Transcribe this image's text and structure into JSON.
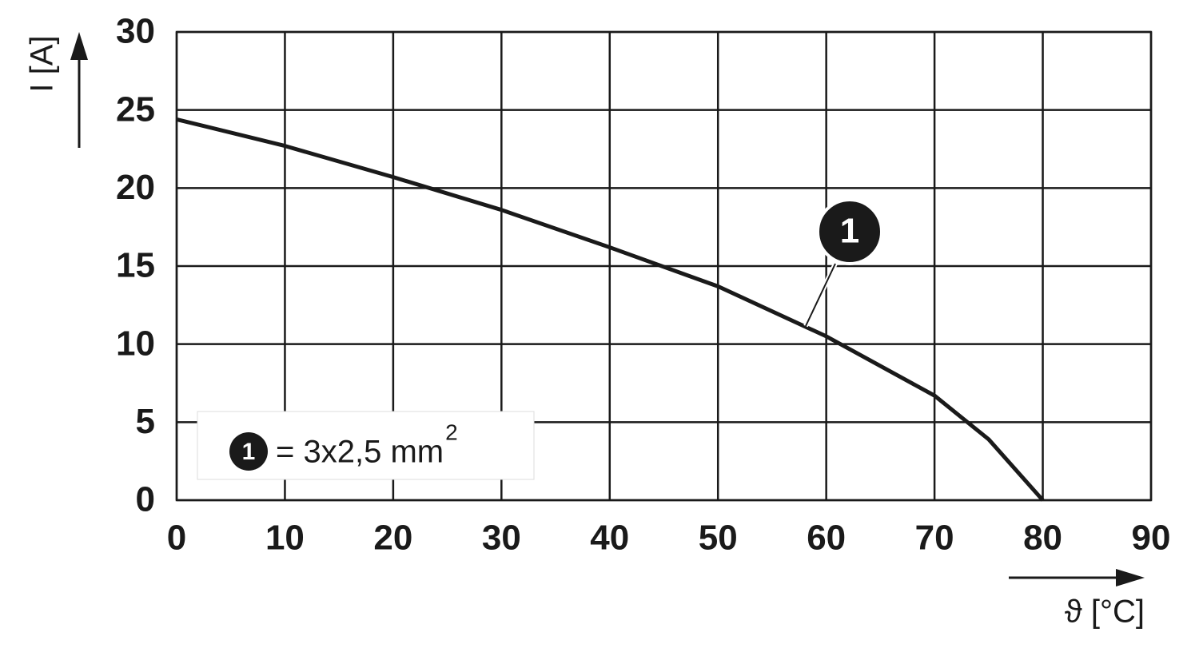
{
  "chart_data": {
    "type": "line",
    "x_label": "ϑ [°C]",
    "y_label": "I [A]",
    "x": [
      0,
      10,
      20,
      30,
      40,
      50,
      60,
      70,
      75,
      80
    ],
    "series": [
      {
        "name": "1",
        "color": "#1a1a1a",
        "values": [
          24.4,
          22.7,
          20.7,
          18.6,
          16.2,
          13.7,
          10.5,
          6.7,
          3.9,
          0
        ]
      }
    ],
    "legend_text": "= 3x2,5 mm",
    "legend_superscript": "2",
    "xlim": [
      0,
      90
    ],
    "xticks": [
      0,
      10,
      20,
      30,
      40,
      50,
      60,
      70,
      80,
      90
    ],
    "ylim": [
      0,
      30
    ],
    "yticks": [
      0,
      5,
      10,
      15,
      20,
      25,
      30
    ],
    "grid": true
  }
}
